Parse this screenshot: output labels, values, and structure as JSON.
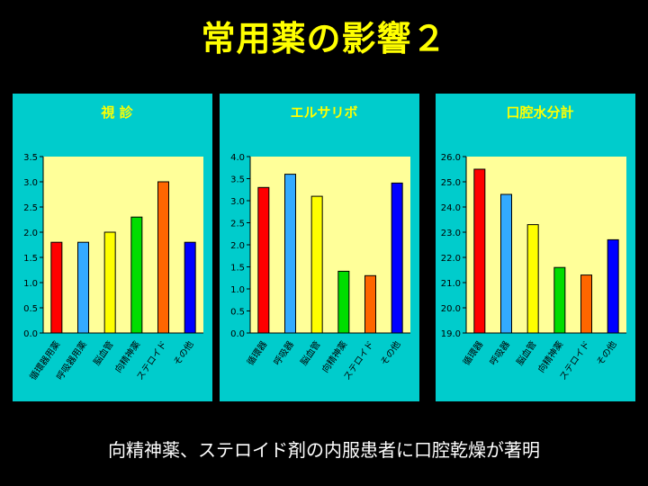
{
  "slide": {
    "title": "常用薬の影響２",
    "caption": "向精神薬、ステロイド剤の内服患者に口腔乾燥が著明"
  },
  "colors": {
    "background": "#000000",
    "title": "#ffff00",
    "panel": "#00cccc",
    "plot_area": "#ffff99",
    "chart_title": "#ffff00",
    "bar_palette": [
      "#ff0000",
      "#33aaff",
      "#ffff00",
      "#00dd00",
      "#ff6600",
      "#0000ff"
    ]
  },
  "chart_data": [
    {
      "type": "bar",
      "title": "視 診",
      "categories": [
        "循環器用薬",
        "呼吸器用薬",
        "脳血管",
        "向精神薬",
        "ステロイド",
        "その他"
      ],
      "values": [
        1.8,
        1.8,
        2.0,
        2.3,
        3.0,
        1.8
      ],
      "ylim": [
        0.0,
        3.5
      ],
      "yticks": [
        "0.0",
        "0.5",
        "1.0",
        "1.5",
        "2.0",
        "2.5",
        "3.0",
        "3.5"
      ],
      "grid": false
    },
    {
      "type": "bar",
      "title": "エルサリボ",
      "categories": [
        "循環器",
        "呼吸器",
        "脳血管",
        "向精神薬",
        "ステロイド",
        "その他"
      ],
      "values": [
        3.3,
        3.6,
        3.1,
        1.4,
        1.3,
        3.4
      ],
      "ylim": [
        0.0,
        4.0
      ],
      "yticks": [
        "0.0",
        "0.5",
        "1.0",
        "1.5",
        "2.0",
        "2.5",
        "3.0",
        "3.5",
        "4.0"
      ],
      "grid": false
    },
    {
      "type": "bar",
      "title": "口腔水分計",
      "categories": [
        "循環器",
        "呼吸器",
        "脳血管",
        "向精神薬",
        "ステロイド",
        "その他"
      ],
      "values": [
        25.5,
        24.5,
        23.3,
        21.6,
        21.3,
        22.7
      ],
      "ylim": [
        19.0,
        26.0
      ],
      "yticks": [
        "19.0",
        "20.0",
        "21.0",
        "22.0",
        "23.0",
        "24.0",
        "25.0",
        "26.0"
      ],
      "grid": false
    }
  ]
}
